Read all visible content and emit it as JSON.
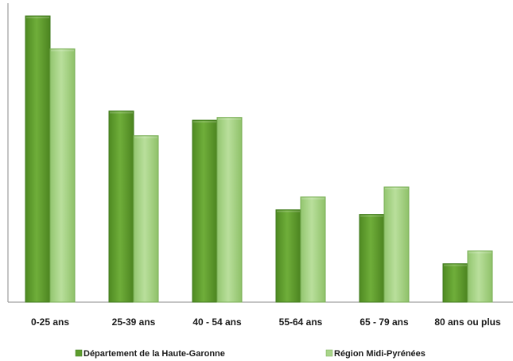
{
  "colors": {
    "series_dark": "#5e9d2e",
    "series_dark_edge": "#3f7a1c",
    "series_light": "#a9d58a",
    "series_light_edge": "#78ad55",
    "axis": "#8a8a8a"
  },
  "chart_data": {
    "type": "bar",
    "title": "",
    "xlabel": "",
    "ylabel": "",
    "categories": [
      "0-25 ans",
      "25-39 ans",
      "40 - 54 ans",
      "55-64 ans",
      "65 - 79 ans",
      "80 ans ou plus"
    ],
    "series": [
      {
        "name": "Département de la Haute-Garonne",
        "values": [
          31.3,
          20.9,
          19.9,
          10.1,
          9.6,
          4.2
        ]
      },
      {
        "name": "Région Midi-Pyrénées",
        "values": [
          27.7,
          18.2,
          20.2,
          11.5,
          12.6,
          5.6
        ]
      }
    ],
    "ylim": [
      0,
      32
    ],
    "grid": false,
    "legend": "bottom"
  }
}
